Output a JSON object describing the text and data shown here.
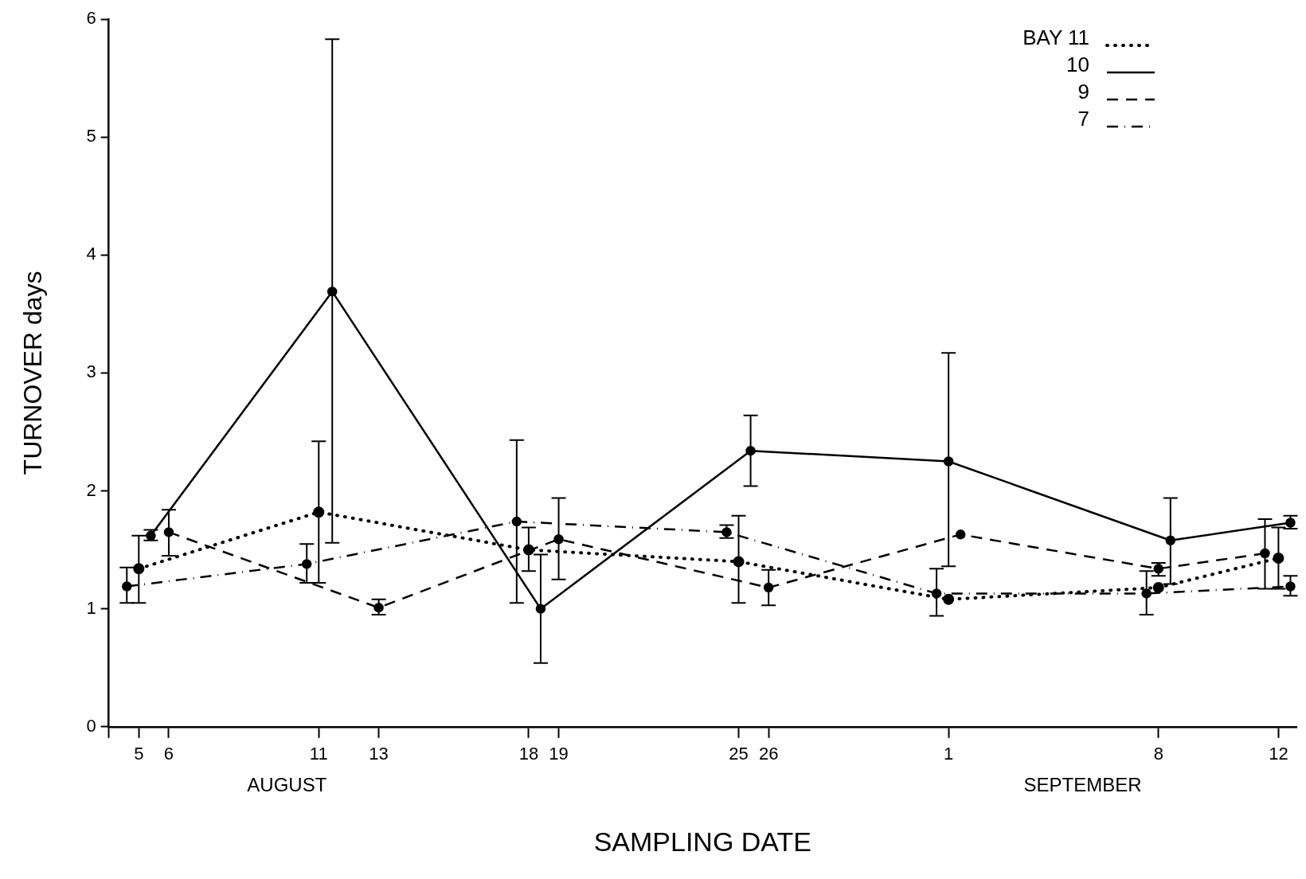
{
  "chart_data": {
    "type": "line",
    "xlabel": "SAMPLING DATE",
    "ylabel": "TURNOVER days",
    "annotations": [
      "AUGUST",
      "SEPTEMBER"
    ],
    "xlim": [
      "--08-04",
      "--09-12T14:24"
    ],
    "xticks": [
      {
        "value": "--08-04",
        "label": null
      },
      {
        "value": "--08-05",
        "label": "5"
      },
      {
        "value": "--08-06",
        "label": "6"
      },
      {
        "value": "--08-11",
        "label": "11"
      },
      {
        "value": "--08-13",
        "label": "13"
      },
      {
        "value": "--08-18",
        "label": "18"
      },
      {
        "value": "--08-19",
        "label": "19"
      },
      {
        "value": "--08-25",
        "label": "25"
      },
      {
        "value": "--08-26",
        "label": "26"
      },
      {
        "value": "--09-01",
        "label": "1"
      },
      {
        "value": "--09-08",
        "label": "8"
      },
      {
        "value": "--09-12",
        "label": "12"
      }
    ],
    "ylim": [
      0,
      6
    ],
    "yticks": [
      0,
      1,
      2,
      3,
      4,
      5,
      6
    ],
    "grid": false,
    "legend": "top right",
    "marker": "circle",
    "series": [
      {
        "name": "BAY 11",
        "color": "#000000",
        "line_style": "dotted",
        "x": [
          "--08-05",
          "--08-11",
          "--08-18",
          "--08-25",
          "--09-01",
          "--09-08",
          "--09-12"
        ],
        "values": [
          1.34,
          1.82,
          1.5,
          1.4,
          1.08,
          1.18,
          1.43
        ],
        "errors": [
          [
            1.05,
            1.62
          ],
          [
            1.22,
            2.42
          ],
          [
            1.32,
            1.69
          ],
          [
            1.05,
            1.79
          ],
          null,
          null,
          [
            1.17,
            1.69
          ]
        ]
      },
      {
        "name": "10",
        "color": "#000000",
        "line_style": "solid",
        "x": [
          "--08-05T09:36",
          "--08-11T10:48",
          "--08-18T09:36",
          "--08-25T09:36",
          "--09-01",
          "--09-08T09:36",
          "--09-12T09:36"
        ],
        "values": [
          1.62,
          3.69,
          1.0,
          2.34,
          2.25,
          1.58,
          1.73
        ],
        "errors": [
          [
            1.58,
            1.67
          ],
          [
            1.56,
            5.83
          ],
          [
            0.54,
            1.46
          ],
          [
            2.04,
            2.64
          ],
          [
            1.36,
            3.17
          ],
          [
            1.21,
            1.94
          ],
          [
            1.68,
            1.79
          ]
        ]
      },
      {
        "name": "9",
        "color": "#000000",
        "line_style": "dashed",
        "x": [
          "--08-06",
          "--08-13",
          "--08-19",
          "--08-26",
          "--09-01T09:36",
          "--09-08",
          "--09-11T13:12"
        ],
        "values": [
          1.65,
          1.01,
          1.59,
          1.18,
          1.63,
          1.34,
          1.47
        ],
        "errors": [
          [
            1.45,
            1.84
          ],
          [
            0.95,
            1.08
          ],
          [
            1.25,
            1.94
          ],
          [
            1.03,
            1.33
          ],
          null,
          [
            1.28,
            1.39
          ],
          [
            1.17,
            1.76
          ]
        ]
      },
      {
        "name": "7",
        "color": "#000000",
        "line_style": "dashdot",
        "x": [
          "--08-04T14:24",
          "--08-10T14:24",
          "--08-17T14:24",
          "--08-24T14:24",
          "--08-31T14:24",
          "--09-07T14:24",
          "--09-12T09:36"
        ],
        "values": [
          1.19,
          1.38,
          1.74,
          1.65,
          1.13,
          1.13,
          1.19
        ],
        "errors": [
          [
            1.05,
            1.35
          ],
          [
            1.22,
            1.55
          ],
          [
            1.05,
            2.43
          ],
          [
            1.6,
            1.71
          ],
          [
            0.94,
            1.34
          ],
          [
            0.95,
            1.32
          ],
          [
            1.11,
            1.28
          ]
        ]
      }
    ]
  }
}
